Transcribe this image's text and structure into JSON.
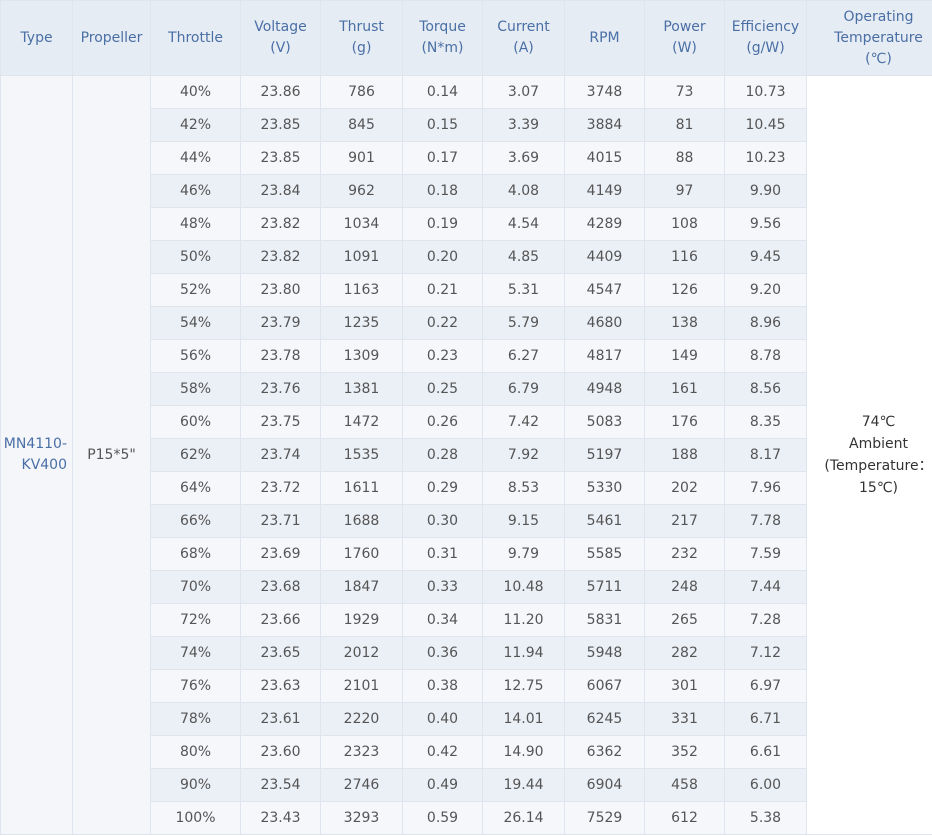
{
  "headers": [
    {
      "line1": "Type",
      "line2": "",
      "line3": ""
    },
    {
      "line1": "Propeller",
      "line2": "",
      "line3": ""
    },
    {
      "line1": "Throttle",
      "line2": "",
      "line3": ""
    },
    {
      "line1": "Voltage",
      "line2": "(V)",
      "line3": ""
    },
    {
      "line1": "Thrust",
      "line2": "(g)",
      "line3": ""
    },
    {
      "line1": "Torque",
      "line2": "(N*m)",
      "line3": ""
    },
    {
      "line1": "Current",
      "line2": "(A)",
      "line3": ""
    },
    {
      "line1": "RPM",
      "line2": "",
      "line3": ""
    },
    {
      "line1": "Power",
      "line2": "(W)",
      "line3": ""
    },
    {
      "line1": "Efficiency",
      "line2": "(g/W)",
      "line3": ""
    },
    {
      "line1": "Operating",
      "line2": "Temperature",
      "line3": "(℃)"
    }
  ],
  "type_line1": "MN4110-",
  "type_line2": "KV400",
  "propeller": "P15*5\"",
  "temperature": {
    "line1": "74℃",
    "line2": "Ambient",
    "line3": "(Temperature：",
    "line4": "15℃)"
  },
  "rows": [
    [
      "40%",
      "23.86",
      "786",
      "0.14",
      "3.07",
      "3748",
      "73",
      "10.73"
    ],
    [
      "42%",
      "23.85",
      "845",
      "0.15",
      "3.39",
      "3884",
      "81",
      "10.45"
    ],
    [
      "44%",
      "23.85",
      "901",
      "0.17",
      "3.69",
      "4015",
      "88",
      "10.23"
    ],
    [
      "46%",
      "23.84",
      "962",
      "0.18",
      "4.08",
      "4149",
      "97",
      "9.90"
    ],
    [
      "48%",
      "23.82",
      "1034",
      "0.19",
      "4.54",
      "4289",
      "108",
      "9.56"
    ],
    [
      "50%",
      "23.82",
      "1091",
      "0.20",
      "4.85",
      "4409",
      "116",
      "9.45"
    ],
    [
      "52%",
      "23.80",
      "1163",
      "0.21",
      "5.31",
      "4547",
      "126",
      "9.20"
    ],
    [
      "54%",
      "23.79",
      "1235",
      "0.22",
      "5.79",
      "4680",
      "138",
      "8.96"
    ],
    [
      "56%",
      "23.78",
      "1309",
      "0.23",
      "6.27",
      "4817",
      "149",
      "8.78"
    ],
    [
      "58%",
      "23.76",
      "1381",
      "0.25",
      "6.79",
      "4948",
      "161",
      "8.56"
    ],
    [
      "60%",
      "23.75",
      "1472",
      "0.26",
      "7.42",
      "5083",
      "176",
      "8.35"
    ],
    [
      "62%",
      "23.74",
      "1535",
      "0.28",
      "7.92",
      "5197",
      "188",
      "8.17"
    ],
    [
      "64%",
      "23.72",
      "1611",
      "0.29",
      "8.53",
      "5330",
      "202",
      "7.96"
    ],
    [
      "66%",
      "23.71",
      "1688",
      "0.30",
      "9.15",
      "5461",
      "217",
      "7.78"
    ],
    [
      "68%",
      "23.69",
      "1760",
      "0.31",
      "9.79",
      "5585",
      "232",
      "7.59"
    ],
    [
      "70%",
      "23.68",
      "1847",
      "0.33",
      "10.48",
      "5711",
      "248",
      "7.44"
    ],
    [
      "72%",
      "23.66",
      "1929",
      "0.34",
      "11.20",
      "5831",
      "265",
      "7.28"
    ],
    [
      "74%",
      "23.65",
      "2012",
      "0.36",
      "11.94",
      "5948",
      "282",
      "7.12"
    ],
    [
      "76%",
      "23.63",
      "2101",
      "0.38",
      "12.75",
      "6067",
      "301",
      "6.97"
    ],
    [
      "78%",
      "23.61",
      "2220",
      "0.40",
      "14.01",
      "6245",
      "331",
      "6.71"
    ],
    [
      "80%",
      "23.60",
      "2323",
      "0.42",
      "14.90",
      "6362",
      "352",
      "6.61"
    ],
    [
      "90%",
      "23.54",
      "2746",
      "0.49",
      "19.44",
      "6904",
      "458",
      "6.00"
    ],
    [
      "100%",
      "23.43",
      "3293",
      "0.59",
      "26.14",
      "7529",
      "612",
      "5.38"
    ]
  ]
}
